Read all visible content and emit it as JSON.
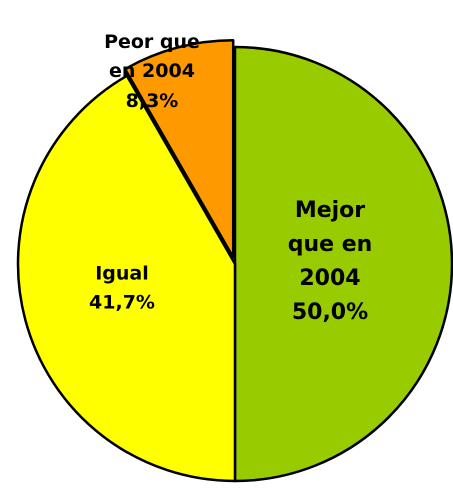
{
  "chart_data": {
    "type": "pie",
    "categories": [
      "Mejor que en 2004",
      "Igual",
      "Peor que en 2004"
    ],
    "values": [
      50.0,
      41.7,
      8.3
    ],
    "value_labels": [
      "50,0%",
      "41,7%",
      "8,3%"
    ],
    "colors": [
      "#99cc00",
      "#ffff00",
      "#ff9900"
    ]
  }
}
